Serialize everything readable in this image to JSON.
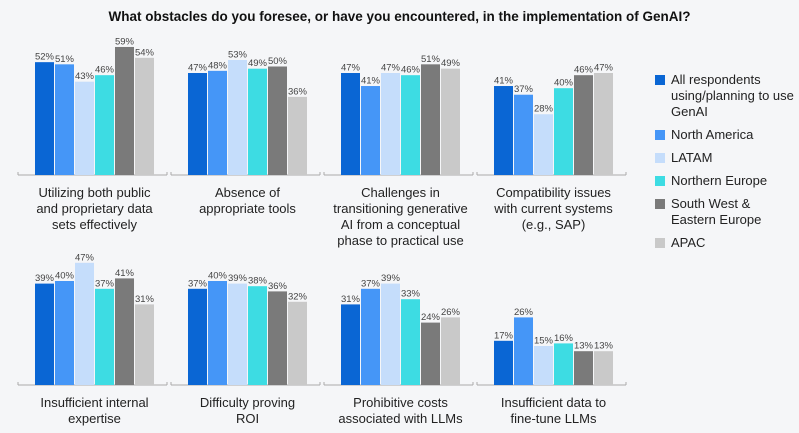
{
  "chart_data": {
    "type": "bar",
    "title": "What obstacles do you foresee, or have you encountered, in the implementation of GenAI?",
    "xlabel": "",
    "ylabel": "",
    "ylim": [
      0,
      60
    ],
    "grid": false,
    "legend_position": "right",
    "value_format": "percent",
    "series": [
      {
        "name": "All respondents using/planning to use GenAI",
        "color": "#0a66d4"
      },
      {
        "name": "North America",
        "color": "#4596f7"
      },
      {
        "name": "LATAM",
        "color": "#c5ddfb"
      },
      {
        "name": "Northern Europe",
        "color": "#3ddce3"
      },
      {
        "name": "South West & Eastern Europe",
        "color": "#7a7a7a"
      },
      {
        "name": "APAC",
        "color": "#c9c9c9"
      }
    ],
    "categories": [
      {
        "label": [
          "Utilizing both public",
          "and proprietary data",
          "sets effectively"
        ],
        "values": [
          52,
          51,
          43,
          46,
          59,
          54
        ]
      },
      {
        "label": [
          "Absence of",
          "appropriate tools"
        ],
        "values": [
          47,
          48,
          53,
          49,
          50,
          36
        ]
      },
      {
        "label": [
          "Challenges in",
          "transitioning generative",
          "AI from a conceptual",
          "phase to practical use"
        ],
        "values": [
          47,
          41,
          47,
          46,
          51,
          49
        ]
      },
      {
        "label": [
          "Compatibility issues",
          "with current systems",
          "(e.g., SAP)"
        ],
        "values": [
          41,
          37,
          28,
          40,
          46,
          47
        ]
      },
      {
        "label": [
          "Insufficient internal",
          "expertise"
        ],
        "values": [
          39,
          40,
          47,
          37,
          41,
          31
        ]
      },
      {
        "label": [
          "Difficulty proving",
          "ROI"
        ],
        "values": [
          37,
          40,
          39,
          38,
          36,
          32
        ]
      },
      {
        "label": [
          "Prohibitive costs",
          "associated with LLMs"
        ],
        "values": [
          31,
          37,
          39,
          33,
          24,
          26
        ]
      },
      {
        "label": [
          "Insufficient data to",
          "fine-tune LLMs"
        ],
        "values": [
          17,
          26,
          15,
          16,
          13,
          13
        ]
      }
    ]
  },
  "legend": {
    "items": [
      {
        "label": "All respondents using/planning to use GenAI",
        "color": "#0a66d4"
      },
      {
        "label": "North America",
        "color": "#4596f7"
      },
      {
        "label": "LATAM",
        "color": "#c5ddfb"
      },
      {
        "label": "Northern Europe",
        "color": "#3ddce3"
      },
      {
        "label": "South West & Eastern Europe",
        "color": "#7a7a7a"
      },
      {
        "label": "APAC",
        "color": "#c9c9c9"
      }
    ]
  }
}
